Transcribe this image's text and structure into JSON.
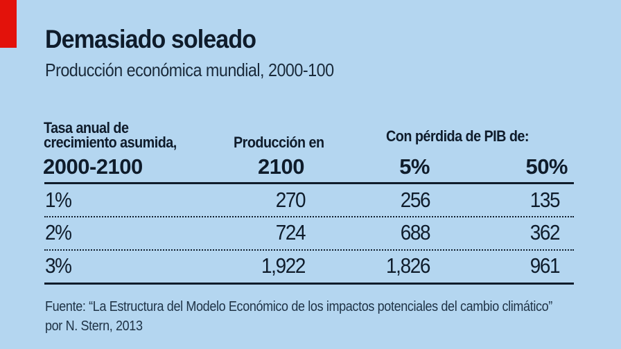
{
  "chart_data": {
    "type": "table",
    "title": "Demasiado soleado",
    "subtitle": "Producción económica mundial, 2000-100",
    "headers": {
      "rate_line1": "Tasa anual de",
      "rate_line2": "crecimiento asumida,",
      "rate_line3": "2000-2100",
      "production_line1": "Producción en",
      "production_line2": "2100",
      "loss_group": "Con pérdida de PIB de:",
      "loss5": "5%",
      "loss50": "50%"
    },
    "rows": [
      {
        "rate": "1%",
        "production": "270",
        "loss5": "256",
        "loss50": "135"
      },
      {
        "rate": "2%",
        "production": "724",
        "loss5": "688",
        "loss50": "362"
      },
      {
        "rate": "3%",
        "production": "1,922",
        "loss5": "1,826",
        "loss50": "961"
      }
    ],
    "source": "Fuente: “La Estructura del Modelo Económico de los impactos potenciales del cambio climático” por N. Stern, 2013"
  },
  "colors": {
    "background": "#b4d6f0",
    "accent": "#e3120b",
    "text": "#0f1c2b"
  }
}
